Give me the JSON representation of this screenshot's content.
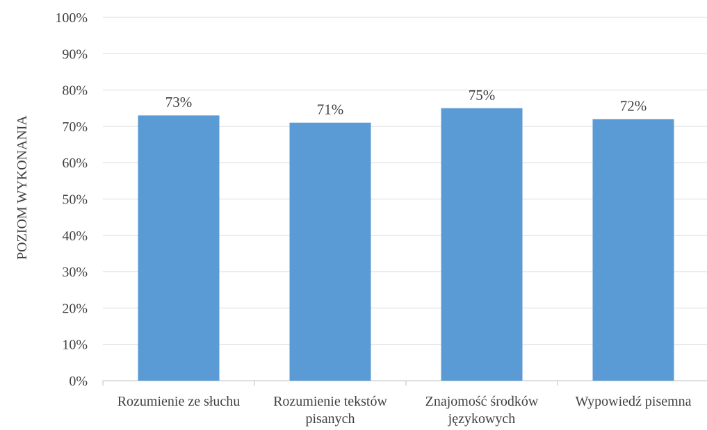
{
  "chart_data": {
    "type": "bar",
    "title": "",
    "xlabel": "",
    "ylabel": "POZIOM WYKONANIA",
    "categories": [
      [
        "Rozumienie ze słuchu"
      ],
      [
        "Rozumienie tekstów",
        "pisanych"
      ],
      [
        "Znajomość środków",
        "językowych"
      ],
      [
        "Wypowiedź pisemna"
      ]
    ],
    "values": [
      73,
      71,
      75,
      72
    ],
    "data_labels": [
      "73%",
      "71%",
      "75%",
      "72%"
    ],
    "ylim": [
      0,
      100
    ],
    "yticks": [
      0,
      10,
      20,
      30,
      40,
      50,
      60,
      70,
      80,
      90,
      100
    ],
    "ytick_labels": [
      "0%",
      "10%",
      "20%",
      "30%",
      "40%",
      "50%",
      "60%",
      "70%",
      "80%",
      "90%",
      "100%"
    ],
    "grid": true,
    "legend": "none",
    "colors": {
      "bar": "#5b9bd5",
      "grid": "#d9d9d9",
      "axis": "#bfbfbf",
      "text": "#404040"
    }
  }
}
